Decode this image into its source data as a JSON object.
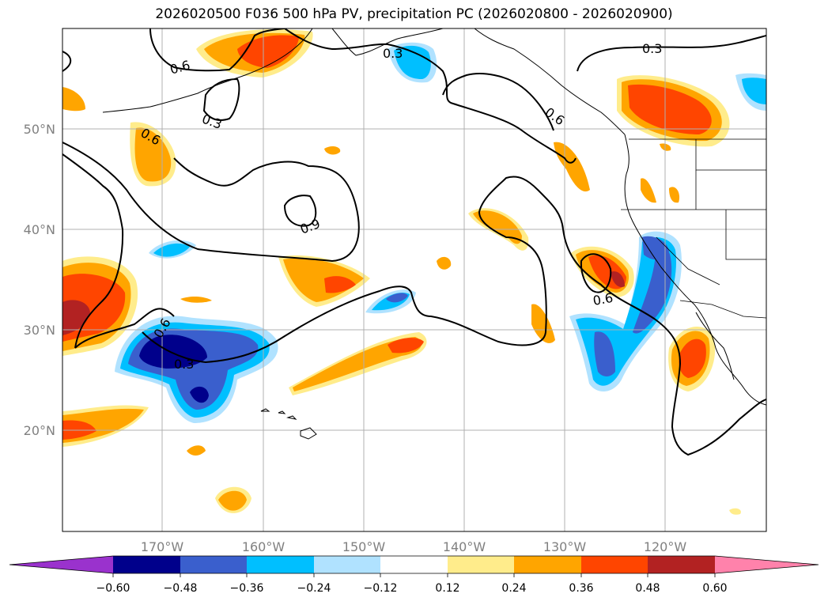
{
  "title": "2026020500 F036 500 hPa PV, precipitation PC (2026020800 - 2026020900)",
  "lat_labels": [
    "50°N",
    "40°N",
    "30°N",
    "20°N"
  ],
  "lon_labels": [
    "170°W",
    "160°W",
    "150°W",
    "140°W",
    "130°W",
    "120°W"
  ],
  "contour_labels": [
    "0.3",
    "0.6",
    "0.9"
  ],
  "colorbar": {
    "ticks": [
      "−0.60",
      "−0.48",
      "−0.36",
      "−0.24",
      "−0.12",
      "0.12",
      "0.24",
      "0.36",
      "0.48",
      "0.60"
    ],
    "colors": {
      "below_min": "#9a32cd",
      "neg_060_048": "#00008b",
      "neg_048_036": "#3a5fcd",
      "neg_036_024": "#00bfff",
      "neg_024_012": "#b0e2ff",
      "zero": "#ffffff",
      "pos_012_024": "#ffec8b",
      "pos_024_036": "#ffa500",
      "pos_036_048": "#ff4500",
      "pos_048_060": "#b22222",
      "above_max": "#ff82ab"
    }
  }
}
